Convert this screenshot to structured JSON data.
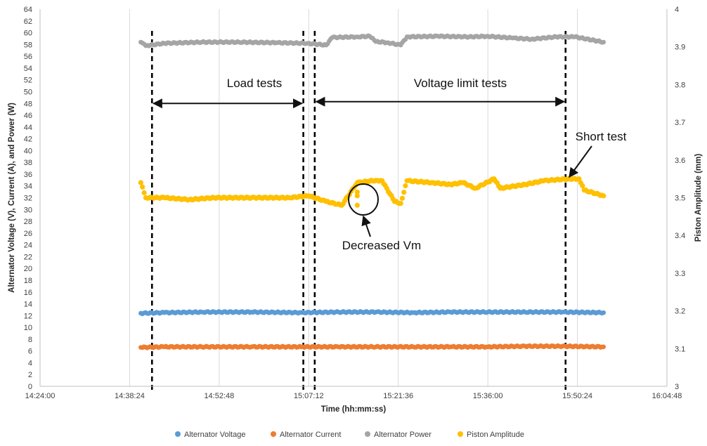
{
  "chart_data": {
    "type": "scatter",
    "title": "",
    "xlabel": "Time (hh:mm:ss)",
    "ylabel": "Alternator Voltage (V), Current (A), and Power (W)",
    "y2label": "Piston Amplitude (mm)",
    "xlim": [
      "14:24:00",
      "16:04:48"
    ],
    "x_tick_labels": [
      "14:24:00",
      "14:38:24",
      "14:52:48",
      "15:07:12",
      "15:21:36",
      "15:36:00",
      "15:50:24",
      "16:04:48"
    ],
    "ylim": [
      0,
      64
    ],
    "y_ticks": [
      0,
      2,
      4,
      6,
      8,
      10,
      12,
      14,
      16,
      18,
      20,
      22,
      24,
      26,
      28,
      30,
      32,
      34,
      36,
      38,
      40,
      42,
      44,
      46,
      48,
      50,
      52,
      54,
      56,
      58,
      60,
      62,
      64
    ],
    "y2lim": [
      3,
      4
    ],
    "y2_ticks": [
      "3",
      "3.1",
      "3.2",
      "3.3",
      "3.4",
      "3.5",
      "3.6",
      "3.7",
      "3.8",
      "3.9",
      "4"
    ],
    "grid": "vertical",
    "legend_position": "bottom",
    "series": [
      {
        "name": "Alternator Voltage",
        "color": "#5b9bd5",
        "axis": "left",
        "x": [
          "14:40:12",
          "14:44:00",
          "14:50:00",
          "14:58:00",
          "15:06:00",
          "15:12:00",
          "15:18:00",
          "15:24:00",
          "15:30:00",
          "15:36:00",
          "15:42:00",
          "15:48:00",
          "15:54:36"
        ],
        "values": [
          12.4,
          12.5,
          12.6,
          12.6,
          12.5,
          12.6,
          12.6,
          12.5,
          12.6,
          12.6,
          12.6,
          12.6,
          12.5
        ]
      },
      {
        "name": "Alternator Current",
        "color": "#ed7d31",
        "axis": "left",
        "x": [
          "14:40:12",
          "14:44:00",
          "14:50:00",
          "14:58:00",
          "15:06:00",
          "15:12:00",
          "15:18:00",
          "15:24:00",
          "15:30:00",
          "15:36:00",
          "15:42:00",
          "15:48:00",
          "15:54:36"
        ],
        "values": [
          6.6,
          6.7,
          6.7,
          6.7,
          6.7,
          6.7,
          6.7,
          6.7,
          6.7,
          6.7,
          6.8,
          6.8,
          6.7
        ]
      },
      {
        "name": "Alternator Power",
        "color": "#a5a5a5",
        "axis": "left",
        "x": [
          "14:40:12",
          "14:41:00",
          "14:44:00",
          "14:50:00",
          "14:56:00",
          "15:02:00",
          "15:07:00",
          "15:10:00",
          "15:11:00",
          "15:15:00",
          "15:17:00",
          "15:18:00",
          "15:20:00",
          "15:22:00",
          "15:23:00",
          "15:28:00",
          "15:33:00",
          "15:36:00",
          "15:40:00",
          "15:43:00",
          "15:47:00",
          "15:50:00",
          "15:54:36"
        ],
        "values": [
          58.4,
          57.8,
          58.2,
          58.4,
          58.4,
          58.3,
          58.2,
          57.9,
          59.2,
          59.3,
          59.4,
          58.5,
          58.3,
          57.9,
          59.3,
          59.4,
          59.3,
          59.4,
          59.1,
          58.9,
          59.3,
          59.3,
          58.4
        ]
      },
      {
        "name": "Piston Amplitude",
        "color": "#ffc000",
        "axis": "right",
        "x": [
          "14:40:12",
          "14:41:00",
          "14:44:00",
          "14:48:00",
          "14:52:00",
          "14:58:00",
          "15:04:00",
          "15:07:12",
          "15:10:00",
          "15:12:30",
          "15:15:00",
          "15:18:00",
          "15:19:00",
          "15:21:00",
          "15:22:00",
          "15:23:00",
          "15:27:00",
          "15:30:00",
          "15:32:00",
          "15:34:00",
          "15:37:00",
          "15:38:00",
          "15:42:00",
          "15:45:00",
          "15:49:00",
          "15:50:40",
          "15:51:30",
          "15:54:36"
        ],
        "values": [
          3.54,
          3.5,
          3.5,
          3.495,
          3.5,
          3.5,
          3.5,
          3.505,
          3.49,
          3.48,
          3.54,
          3.546,
          3.545,
          3.49,
          3.485,
          3.545,
          3.54,
          3.535,
          3.54,
          3.525,
          3.55,
          3.525,
          3.535,
          3.545,
          3.55,
          3.55,
          3.52,
          3.505
        ]
      },
      {
        "name": "Piston Amplitude (decreased Vm)",
        "color": "#ffc000",
        "axis": "right",
        "x": [
          "15:15:00",
          "15:15:00",
          "15:15:00"
        ],
        "values": [
          3.515,
          3.505,
          3.48
        ]
      }
    ],
    "vertical_markers": [
      "14:42:00",
      "15:06:20",
      "15:08:10",
      "15:48:30"
    ],
    "annotations": [
      {
        "text": "Load tests",
        "arrow_from": "14:42:00",
        "arrow_to": "15:06:20",
        "y": 48
      },
      {
        "text": "Voltage limit tests",
        "arrow_from": "15:08:10",
        "arrow_to": "15:48:30",
        "y": 48.3
      },
      {
        "text": "Short test"
      },
      {
        "text": "Decreased Vm"
      }
    ]
  }
}
